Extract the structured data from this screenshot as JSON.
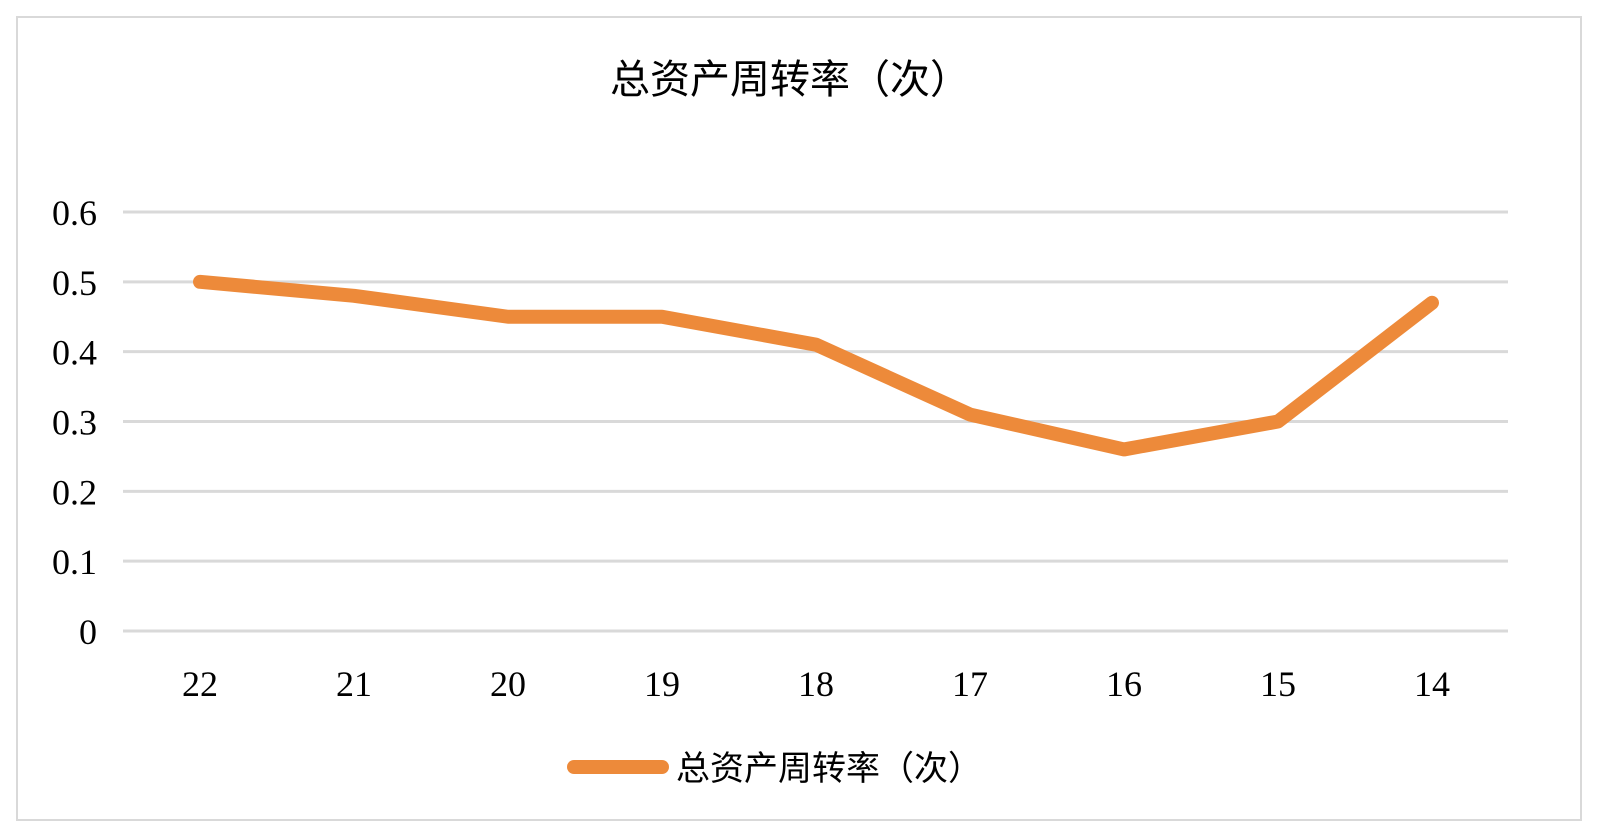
{
  "chart_data": {
    "type": "line",
    "title": "总资产周转率（次）",
    "categories": [
      "22",
      "21",
      "20",
      "19",
      "18",
      "17",
      "16",
      "15",
      "14"
    ],
    "series": [
      {
        "name": "总资产周转率（次）",
        "values": [
          0.5,
          0.48,
          0.45,
          0.45,
          0.41,
          0.31,
          0.26,
          0.3,
          0.47
        ],
        "color": "#ED8A3A"
      }
    ],
    "yticks": [
      "0",
      "0.1",
      "0.2",
      "0.3",
      "0.4",
      "0.5",
      "0.6"
    ],
    "ylim": [
      0,
      0.6
    ],
    "grid": true,
    "gridColor": "#d9d9d9",
    "legend": "bottom"
  }
}
